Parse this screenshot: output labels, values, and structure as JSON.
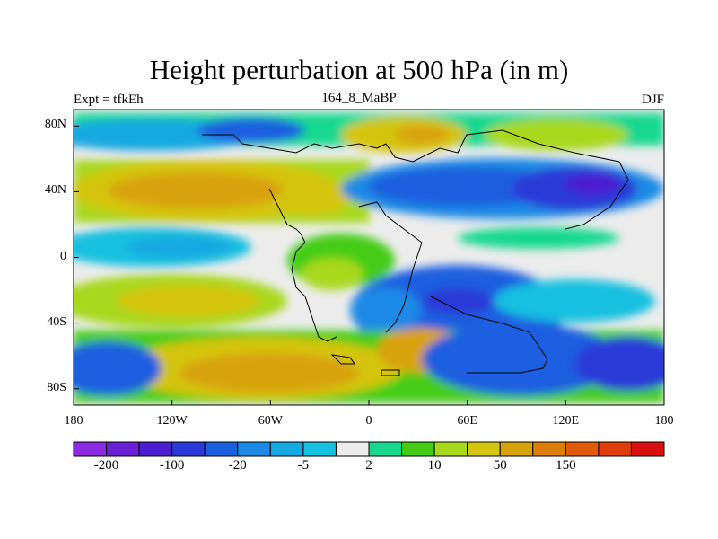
{
  "title": "Height perturbation at 500 hPa (in m)",
  "left_string": "Expt = tfkEh",
  "center_string": "164_8_MaBP",
  "right_string": "DJF",
  "map": {
    "lat_labels": [
      "80N",
      "40N",
      "0",
      "40S",
      "80S"
    ],
    "lat_values": [
      80,
      40,
      0,
      -40,
      -80
    ],
    "lon_labels": [
      "180",
      "120W",
      "60W",
      "0",
      "60E",
      "120E",
      "180"
    ],
    "lon_values": [
      -180,
      -120,
      -60,
      0,
      60,
      120,
      180
    ],
    "lat_range": [
      -90,
      90
    ],
    "lon_range": [
      -180,
      180
    ]
  },
  "colorbar": {
    "colors": [
      "#8b2be2",
      "#6a1fd4",
      "#4b1ed0",
      "#2a3ad8",
      "#1a5fe0",
      "#1a8ae6",
      "#16a8e0",
      "#16c0e0",
      "#ececec",
      "#18d890",
      "#44cc14",
      "#a8d81a",
      "#d4c40e",
      "#d8a20a",
      "#dc7e08",
      "#e05a08",
      "#e03c08",
      "#d81010"
    ],
    "labels": [
      "-200",
      "-100",
      "-20",
      "-5",
      "2",
      "10",
      "50",
      "150"
    ]
  }
}
